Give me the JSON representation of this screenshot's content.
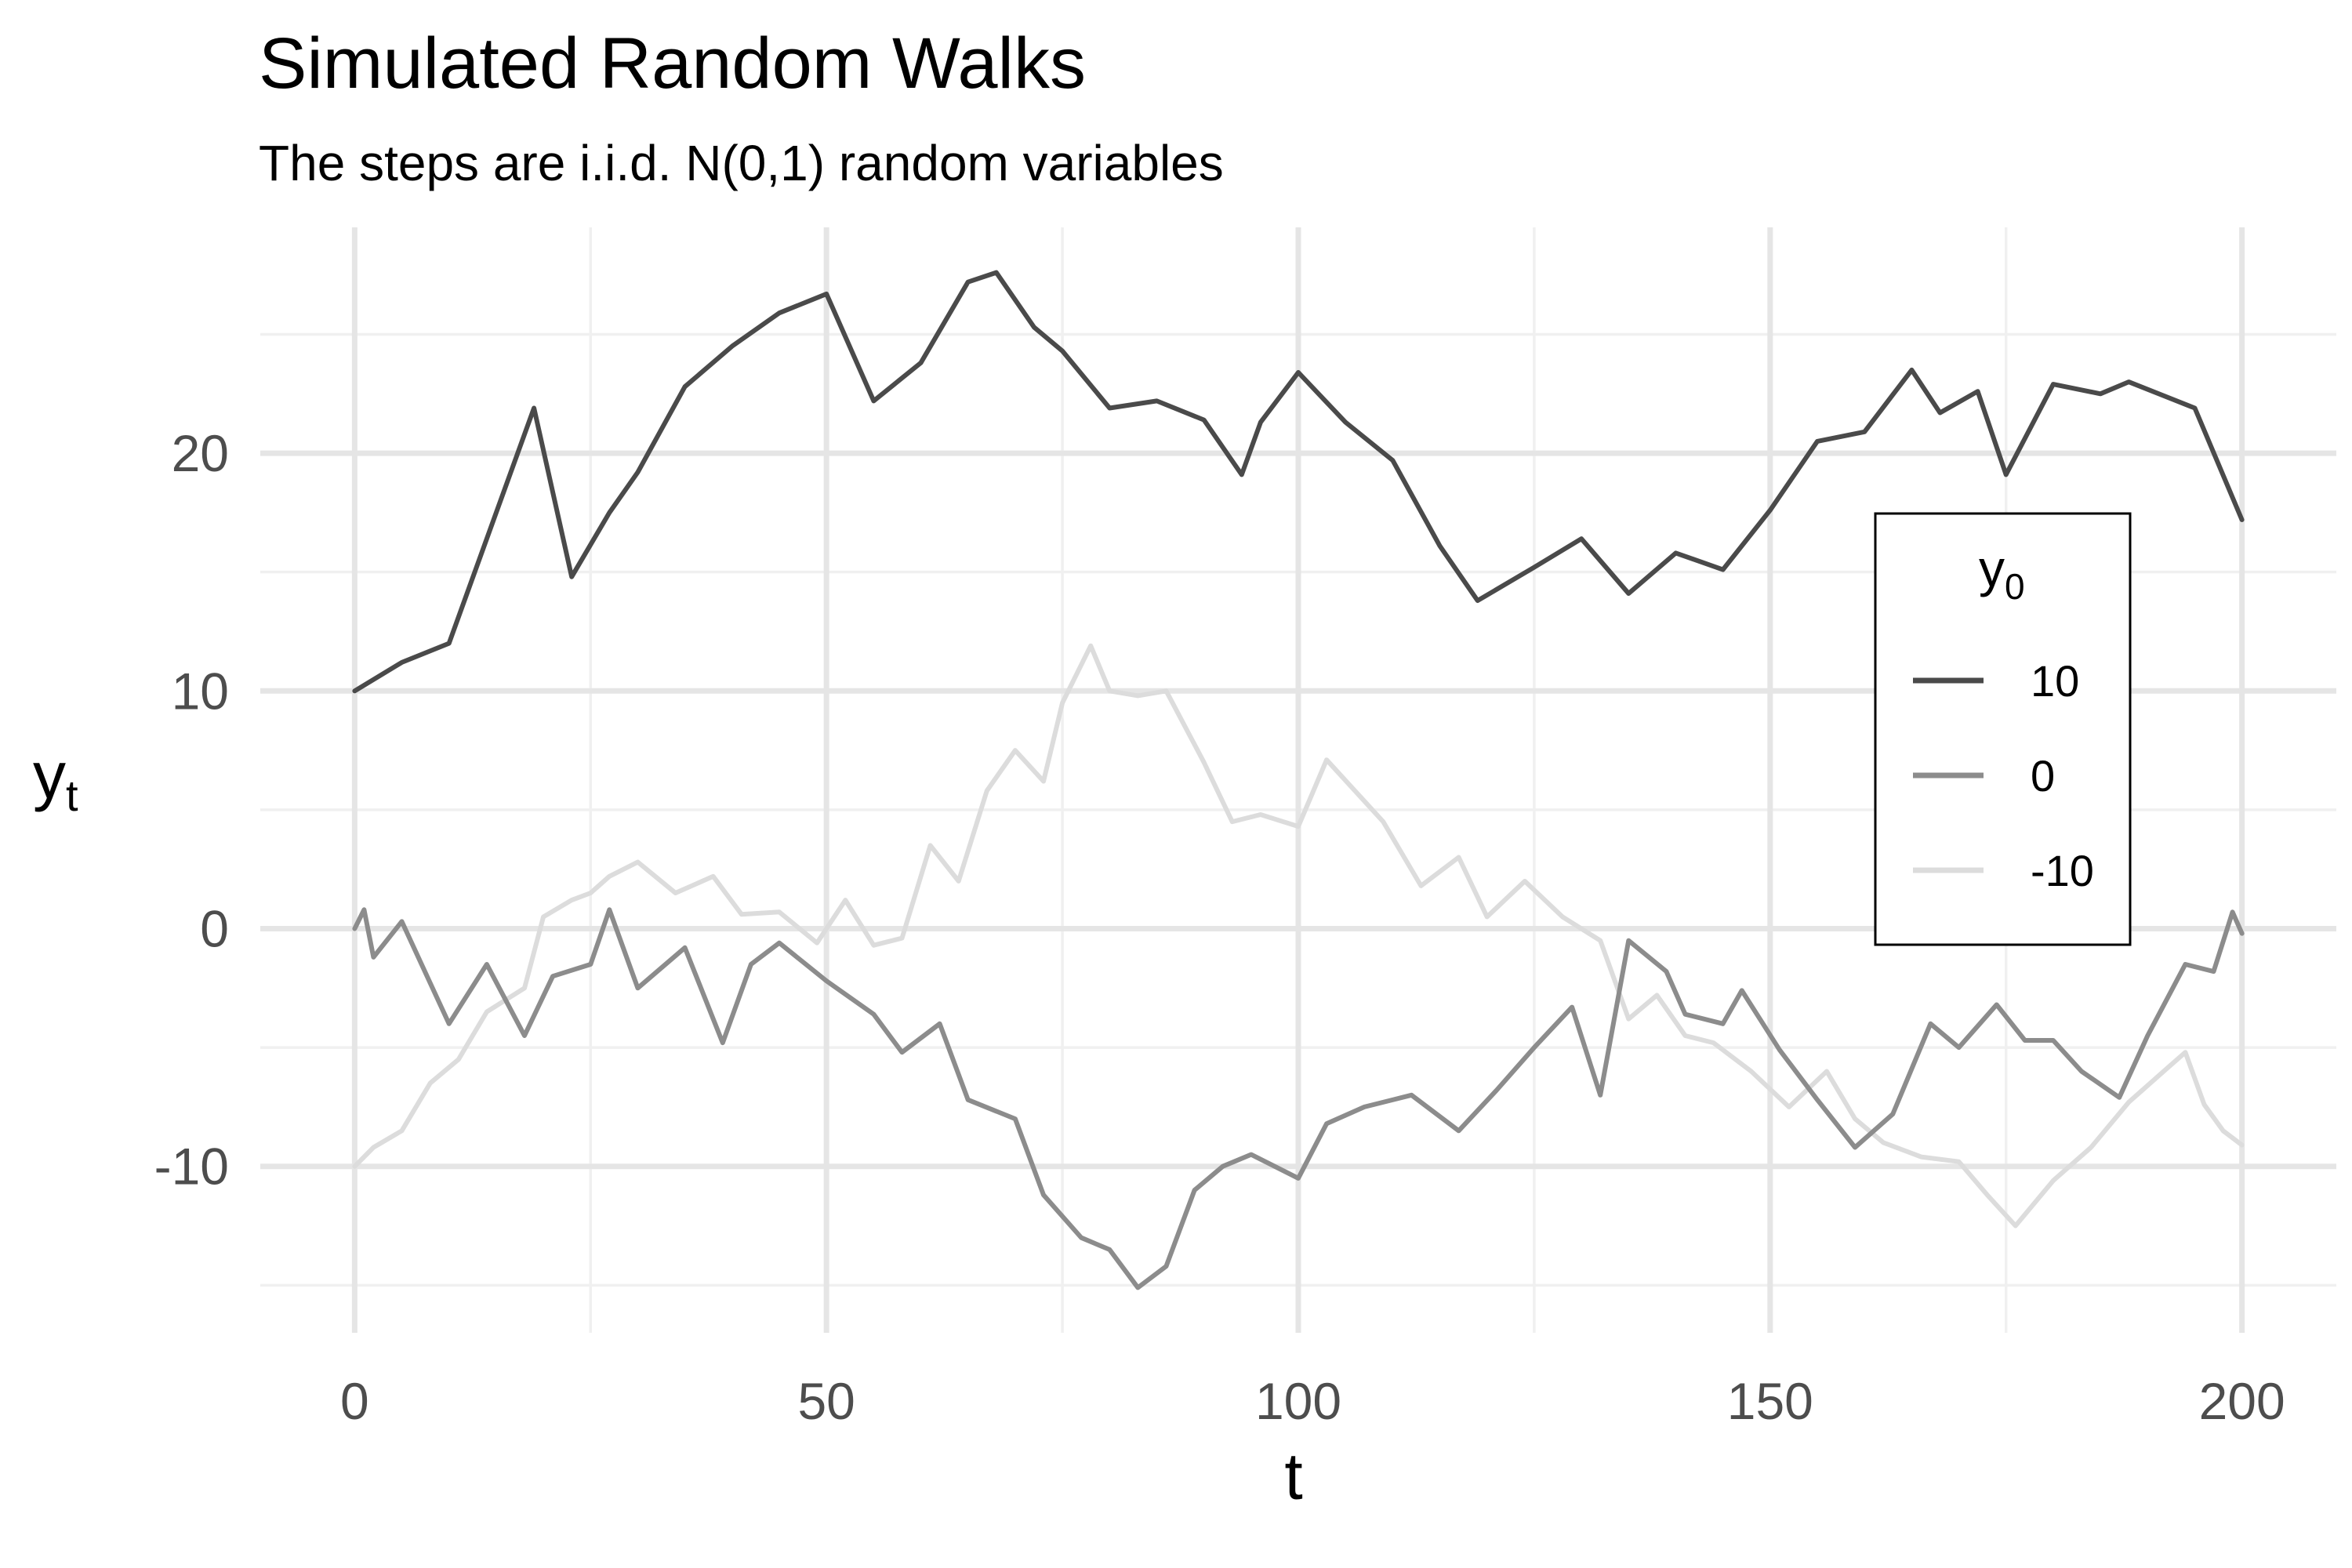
{
  "chart_data": {
    "type": "line",
    "title": "Simulated Random Walks",
    "subtitle": "The steps are i.i.d. N(0,1) random variables",
    "xlabel": "t",
    "ylabel": {
      "base": "y",
      "subscript": "t"
    },
    "xlim": [
      -10,
      210
    ],
    "ylim": [
      -17,
      29.5
    ],
    "x_ticks": [
      0,
      50,
      100,
      150,
      200
    ],
    "x_tick_labels": [
      "0",
      "50",
      "100",
      "150",
      "200"
    ],
    "y_ticks": [
      -10,
      0,
      10,
      20
    ],
    "y_tick_labels": [
      "-10",
      "0",
      "10",
      "20"
    ],
    "grid": true,
    "legend": {
      "title": {
        "base": "y",
        "subscript": "0"
      },
      "position": "right",
      "entries": [
        "10",
        "0",
        "-10"
      ]
    },
    "colors": {
      "10": "#4a4a4a",
      "0": "#8c8c8c",
      "-10": "#dcdcdc"
    },
    "series": [
      {
        "name": "10",
        "x": [
          0,
          5,
          10,
          15,
          19,
          23,
          27,
          30,
          35,
          40,
          45,
          50,
          55,
          60,
          65,
          68,
          72,
          75,
          80,
          85,
          90,
          94,
          96,
          100,
          105,
          110,
          115,
          119,
          125,
          130,
          135,
          140,
          145,
          150,
          155,
          160,
          165,
          168,
          172,
          175,
          180,
          185,
          188,
          195,
          200
        ],
        "y": [
          10,
          11.2,
          12,
          17.5,
          21.9,
          14.8,
          17.5,
          19.2,
          22.8,
          24.5,
          25.9,
          26.7,
          22.2,
          23.8,
          27.2,
          27.6,
          25.3,
          24.3,
          21.9,
          22.2,
          21.4,
          19.1,
          21.3,
          23.4,
          21.3,
          19.7,
          16.1,
          13.8,
          15.2,
          16.4,
          14.1,
          15.8,
          15.1,
          17.6,
          20.5,
          20.9,
          23.5,
          21.7,
          22.6,
          19.1,
          22.9,
          22.5,
          23.0,
          21.9,
          17.2
        ]
      },
      {
        "name": "0",
        "x": [
          0,
          1,
          2,
          5,
          10,
          14,
          18,
          21,
          25,
          27,
          30,
          35,
          39,
          42,
          45,
          50,
          55,
          58,
          62,
          65,
          70,
          73,
          77,
          80,
          83,
          86,
          89,
          92,
          95,
          100,
          103,
          107,
          112,
          117,
          121,
          125,
          129,
          132,
          135,
          139,
          141,
          145,
          147,
          151,
          155,
          159,
          163,
          167,
          170,
          174,
          177,
          180,
          183,
          187,
          190,
          194,
          197,
          199,
          200
        ],
        "y": [
          0,
          0.8,
          -1.2,
          0.3,
          -4.0,
          -1.5,
          -4.5,
          -2.0,
          -1.5,
          0.8,
          -2.5,
          -0.8,
          -4.8,
          -1.5,
          -0.6,
          -2.2,
          -3.6,
          -5.2,
          -4.0,
          -7.2,
          -8.0,
          -11.2,
          -13.0,
          -13.5,
          -15.1,
          -14.2,
          -11.0,
          -10.0,
          -9.5,
          -10.5,
          -8.2,
          -7.5,
          -7.0,
          -8.5,
          -6.8,
          -5.0,
          -3.3,
          -7.0,
          -0.5,
          -1.8,
          -3.6,
          -4.0,
          -2.6,
          -5.1,
          -7.2,
          -9.2,
          -7.8,
          -4.0,
          -5.0,
          -3.2,
          -4.7,
          -4.7,
          -6.0,
          -7.1,
          -4.5,
          -1.5,
          -1.8,
          0.7,
          -0.2
        ]
      },
      {
        "name": "-10",
        "x": [
          0,
          2,
          5,
          8,
          11,
          14,
          18,
          20,
          23,
          25,
          27,
          30,
          34,
          38,
          41,
          45,
          49,
          52,
          55,
          58,
          61,
          64,
          67,
          70,
          73,
          75,
          78,
          80,
          83,
          86,
          90,
          93,
          96,
          100,
          103,
          106,
          109,
          113,
          117,
          120,
          124,
          128,
          132,
          135,
          138,
          141,
          144,
          148,
          152,
          156,
          159,
          162,
          166,
          170,
          173,
          176,
          180,
          184,
          188,
          192,
          194,
          196,
          198,
          200
        ],
        "y": [
          -10,
          -9.2,
          -8.5,
          -6.5,
          -5.5,
          -3.5,
          -2.5,
          0.5,
          1.2,
          1.5,
          2.2,
          2.8,
          1.5,
          2.2,
          0.6,
          0.7,
          -0.6,
          1.2,
          -0.7,
          -0.4,
          3.5,
          2.0,
          5.8,
          7.5,
          6.2,
          9.5,
          11.9,
          10.0,
          9.8,
          10.0,
          7.0,
          4.5,
          4.8,
          4.3,
          7.1,
          5.8,
          4.5,
          1.8,
          3.0,
          0.5,
          2.0,
          0.5,
          -0.5,
          -3.8,
          -2.8,
          -4.5,
          -4.8,
          -6.0,
          -7.5,
          -6.0,
          -8.0,
          -9.0,
          -9.6,
          -9.8,
          -11.2,
          -12.5,
          -10.6,
          -9.2,
          -7.3,
          -5.9,
          -5.2,
          -7.4,
          -8.5,
          -9.1
        ]
      }
    ]
  }
}
